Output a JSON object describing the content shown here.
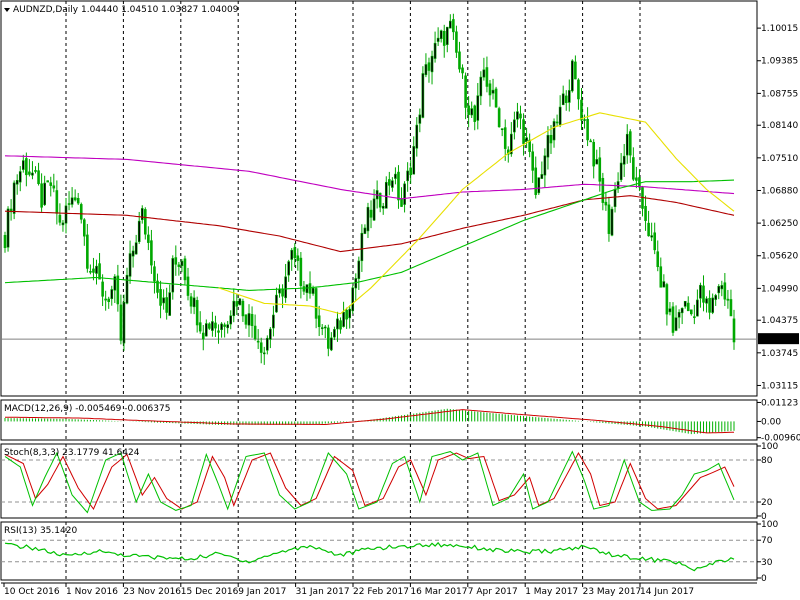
{
  "colors": {
    "candle": "#00a800",
    "ma_red": "#b00000",
    "ma_magenta": "#c000c0",
    "ma_green": "#00c000",
    "ma_yellow": "#e8e000",
    "macd_hist": "#00b000",
    "macd_signal": "#d00000",
    "stoch_main": "#00c000",
    "stoch_signal": "#d00000",
    "rsi_line": "#00c000",
    "price_box": "#000000"
  },
  "chart_data": [
    {
      "type": "candlestick",
      "title": "AUDNZD,Daily  1.04440 1.04510 1.03827 1.04009",
      "ylim": [
        1.0295,
        1.105
      ],
      "yticks": [
        "1.10015",
        "1.09385",
        "1.08755",
        "1.08140",
        "1.07510",
        "1.06880",
        "1.06250",
        "1.05620",
        "1.04990",
        "1.04375",
        "1.03745",
        "1.03115"
      ],
      "ytick_values": [
        1.10015,
        1.09385,
        1.08755,
        1.0814,
        1.0751,
        1.0688,
        1.0625,
        1.0562,
        1.0499,
        1.04375,
        1.03745,
        1.03115
      ],
      "last_price": "1.04009",
      "last_value": 1.04009,
      "xticks": [
        "10 Oct 2016",
        "1 Nov 2016",
        "23 Nov 2016",
        "15 Dec 2016",
        "9 Jan 2017",
        "31 Jan 2017",
        "22 Feb 2017",
        "16 Mar 2017",
        "7 Apr 2017",
        "1 May 2017",
        "23 May 2017",
        "14 Jun 2017"
      ],
      "close_path": [
        [
          0,
          1.06
        ],
        [
          3,
          1.07
        ],
        [
          6,
          1.074
        ],
        [
          9,
          1.072
        ],
        [
          12,
          1.067
        ],
        [
          15,
          1.07
        ],
        [
          18,
          1.062
        ],
        [
          21,
          1.066
        ],
        [
          24,
          1.068
        ],
        [
          27,
          1.056
        ],
        [
          30,
          1.052
        ],
        [
          33,
          1.048
        ],
        [
          36,
          1.05
        ],
        [
          38,
          1.04
        ],
        [
          40,
          1.052
        ],
        [
          43,
          1.06
        ],
        [
          45,
          1.064
        ],
        [
          48,
          1.056
        ],
        [
          50,
          1.05
        ],
        [
          53,
          1.045
        ],
        [
          55,
          1.054
        ],
        [
          58,
          1.056
        ],
        [
          60,
          1.05
        ],
        [
          63,
          1.045
        ],
        [
          65,
          1.042
        ],
        [
          68,
          1.044
        ],
        [
          70,
          1.042
        ],
        [
          73,
          1.045
        ],
        [
          76,
          1.048
        ],
        [
          79,
          1.045
        ],
        [
          82,
          1.042
        ],
        [
          85,
          1.038
        ],
        [
          88,
          1.045
        ],
        [
          91,
          1.05
        ],
        [
          94,
          1.056
        ],
        [
          97,
          1.052
        ],
        [
          100,
          1.05
        ],
        [
          103,
          1.044
        ],
        [
          106,
          1.039
        ],
        [
          109,
          1.042
        ],
        [
          112,
          1.046
        ],
        [
          115,
          1.052
        ],
        [
          118,
          1.062
        ],
        [
          121,
          1.066
        ],
        [
          124,
          1.068
        ],
        [
          127,
          1.072
        ],
        [
          130,
          1.066
        ],
        [
          133,
          1.074
        ],
        [
          135,
          1.08
        ],
        [
          137,
          1.09
        ],
        [
          140,
          1.095
        ],
        [
          143,
          1.098
        ],
        [
          146,
          1.1
        ],
        [
          148,
          1.095
        ],
        [
          151,
          1.087
        ],
        [
          154,
          1.082
        ],
        [
          157,
          1.092
        ],
        [
          159,
          1.088
        ],
        [
          162,
          1.083
        ],
        [
          165,
          1.076
        ],
        [
          168,
          1.084
        ],
        [
          171,
          1.078
        ],
        [
          174,
          1.068
        ],
        [
          177,
          1.076
        ],
        [
          180,
          1.08
        ],
        [
          183,
          1.086
        ],
        [
          186,
          1.092
        ],
        [
          189,
          1.084
        ],
        [
          192,
          1.078
        ],
        [
          195,
          1.07
        ],
        [
          198,
          1.062
        ],
        [
          201,
          1.072
        ],
        [
          204,
          1.078
        ],
        [
          207,
          1.069
        ],
        [
          210,
          1.064
        ],
        [
          213,
          1.056
        ],
        [
          216,
          1.049
        ],
        [
          219,
          1.042
        ],
        [
          222,
          1.047
        ],
        [
          225,
          1.045
        ],
        [
          228,
          1.049
        ],
        [
          231,
          1.045
        ],
        [
          234,
          1.051
        ],
        [
          237,
          1.048
        ],
        [
          239,
          1.04
        ]
      ],
      "series": [
        {
          "name": "",
          "color_key": "ma_magenta",
          "points": [
            [
              0,
              1.0755
            ],
            [
              40,
              1.0748
            ],
            [
              80,
              1.0725
            ],
            [
              110,
              1.069
            ],
            [
              130,
              1.0672
            ],
            [
              150,
              1.0685
            ],
            [
              170,
              1.069
            ],
            [
              190,
              1.07
            ],
            [
              210,
              1.0695
            ],
            [
              239,
              1.0682
            ]
          ]
        },
        {
          "name": "",
          "color_key": "ma_red",
          "points": [
            [
              0,
              1.0648
            ],
            [
              40,
              1.064
            ],
            [
              70,
              1.062
            ],
            [
              90,
              1.06
            ],
            [
              110,
              1.057
            ],
            [
              130,
              1.0585
            ],
            [
              150,
              1.0615
            ],
            [
              170,
              1.064
            ],
            [
              190,
              1.067
            ],
            [
              205,
              1.0678
            ],
            [
              220,
              1.0665
            ],
            [
              239,
              1.064
            ]
          ]
        },
        {
          "name": "",
          "color_key": "ma_green",
          "points": [
            [
              0,
              1.051
            ],
            [
              30,
              1.052
            ],
            [
              60,
              1.0505
            ],
            [
              80,
              1.0495
            ],
            [
              100,
              1.05
            ],
            [
              115,
              1.051
            ],
            [
              130,
              1.053
            ],
            [
              150,
              1.058
            ],
            [
              170,
              1.063
            ],
            [
              190,
              1.067
            ],
            [
              200,
              1.069
            ],
            [
              210,
              1.0705
            ],
            [
              225,
              1.0705
            ],
            [
              239,
              1.0708
            ]
          ]
        },
        {
          "name": "",
          "color_key": "ma_yellow",
          "points": [
            [
              70,
              1.05
            ],
            [
              85,
              1.047
            ],
            [
              100,
              1.0465
            ],
            [
              110,
              1.045
            ],
            [
              120,
              1.05
            ],
            [
              135,
              1.059
            ],
            [
              150,
              1.069
            ],
            [
              165,
              1.076
            ],
            [
              180,
              1.081
            ],
            [
              195,
              1.0838
            ],
            [
              210,
              1.082
            ],
            [
              220,
              1.075
            ],
            [
              230,
              1.069
            ],
            [
              239,
              1.0648
            ]
          ]
        }
      ]
    },
    {
      "type": "bar",
      "title": "MACD(12,26,9) -0.005469 -0.006375",
      "ylim": [
        -0.0098,
        0.0115
      ],
      "yticks": [
        "0.01123",
        "0.00",
        "-0.00960"
      ],
      "ytick_values": [
        0.01123,
        0,
        -0.0096
      ],
      "histogram_points": [
        [
          0,
          0.002
        ],
        [
          20,
          0.0015
        ],
        [
          40,
          0.0
        ],
        [
          70,
          -0.002
        ],
        [
          100,
          -0.002
        ],
        [
          120,
          0.001
        ],
        [
          145,
          0.0075
        ],
        [
          165,
          0.004
        ],
        [
          190,
          0.0
        ],
        [
          210,
          -0.003
        ],
        [
          225,
          -0.0075
        ],
        [
          239,
          -0.0055
        ]
      ],
      "signal_points": [
        [
          0,
          0.0025
        ],
        [
          25,
          0.002
        ],
        [
          45,
          0.0005
        ],
        [
          75,
          -0.0015
        ],
        [
          105,
          -0.0018
        ],
        [
          125,
          0.0015
        ],
        [
          150,
          0.007
        ],
        [
          170,
          0.004
        ],
        [
          195,
          0.0005
        ],
        [
          215,
          -0.003
        ],
        [
          230,
          -0.0068
        ],
        [
          239,
          -0.0064
        ]
      ]
    },
    {
      "type": "line",
      "title": "Stoch(8,3,3) 23.1779 41.6424",
      "ylim": [
        0,
        100
      ],
      "yticks": [
        "100",
        "80",
        "20",
        "0"
      ],
      "ytick_values": [
        100,
        80,
        20,
        0
      ],
      "main_points": [
        [
          0,
          85
        ],
        [
          5,
          70
        ],
        [
          9,
          15
        ],
        [
          13,
          55
        ],
        [
          17,
          90
        ],
        [
          22,
          30
        ],
        [
          27,
          5
        ],
        [
          33,
          80
        ],
        [
          38,
          90
        ],
        [
          43,
          20
        ],
        [
          47,
          60
        ],
        [
          51,
          20
        ],
        [
          56,
          8
        ],
        [
          61,
          15
        ],
        [
          66,
          88
        ],
        [
          70,
          45
        ],
        [
          73,
          10
        ],
        [
          79,
          85
        ],
        [
          85,
          90
        ],
        [
          90,
          30
        ],
        [
          95,
          10
        ],
        [
          100,
          20
        ],
        [
          106,
          90
        ],
        [
          112,
          60
        ],
        [
          116,
          10
        ],
        [
          122,
          20
        ],
        [
          127,
          75
        ],
        [
          131,
          85
        ],
        [
          136,
          20
        ],
        [
          140,
          85
        ],
        [
          146,
          92
        ],
        [
          150,
          80
        ],
        [
          155,
          90
        ],
        [
          160,
          15
        ],
        [
          165,
          25
        ],
        [
          170,
          60
        ],
        [
          173,
          10
        ],
        [
          178,
          20
        ],
        [
          186,
          92
        ],
        [
          190,
          50
        ],
        [
          193,
          10
        ],
        [
          198,
          15
        ],
        [
          203,
          80
        ],
        [
          208,
          20
        ],
        [
          212,
          8
        ],
        [
          218,
          10
        ],
        [
          222,
          30
        ],
        [
          226,
          60
        ],
        [
          230,
          65
        ],
        [
          234,
          75
        ],
        [
          239,
          23
        ]
      ],
      "signal_points": [
        [
          0,
          88
        ],
        [
          6,
          75
        ],
        [
          10,
          25
        ],
        [
          14,
          45
        ],
        [
          19,
          85
        ],
        [
          24,
          40
        ],
        [
          29,
          10
        ],
        [
          35,
          70
        ],
        [
          40,
          88
        ],
        [
          45,
          30
        ],
        [
          49,
          55
        ],
        [
          53,
          25
        ],
        [
          58,
          10
        ],
        [
          63,
          20
        ],
        [
          68,
          85
        ],
        [
          72,
          55
        ],
        [
          75,
          15
        ],
        [
          81,
          80
        ],
        [
          87,
          90
        ],
        [
          92,
          40
        ],
        [
          97,
          15
        ],
        [
          102,
          25
        ],
        [
          108,
          85
        ],
        [
          114,
          65
        ],
        [
          118,
          15
        ],
        [
          124,
          25
        ],
        [
          129,
          70
        ],
        [
          133,
          80
        ],
        [
          138,
          30
        ],
        [
          142,
          80
        ],
        [
          148,
          90
        ],
        [
          152,
          82
        ],
        [
          157,
          85
        ],
        [
          162,
          22
        ],
        [
          167,
          30
        ],
        [
          172,
          55
        ],
        [
          175,
          15
        ],
        [
          180,
          25
        ],
        [
          188,
          90
        ],
        [
          192,
          60
        ],
        [
          195,
          15
        ],
        [
          200,
          20
        ],
        [
          205,
          75
        ],
        [
          210,
          25
        ],
        [
          214,
          10
        ],
        [
          220,
          15
        ],
        [
          224,
          35
        ],
        [
          228,
          55
        ],
        [
          232,
          62
        ],
        [
          236,
          70
        ],
        [
          239,
          42
        ]
      ]
    },
    {
      "type": "line",
      "title": "RSI(13) 35.1420",
      "ylim": [
        0,
        100
      ],
      "yticks": [
        "100",
        "70",
        "30",
        "0"
      ],
      "ytick_values": [
        100,
        70,
        30,
        0
      ],
      "points": [
        [
          0,
          62
        ],
        [
          10,
          55
        ],
        [
          20,
          40
        ],
        [
          30,
          50
        ],
        [
          40,
          42
        ],
        [
          50,
          38
        ],
        [
          60,
          35
        ],
        [
          70,
          45
        ],
        [
          80,
          30
        ],
        [
          90,
          48
        ],
        [
          100,
          60
        ],
        [
          110,
          42
        ],
        [
          120,
          55
        ],
        [
          130,
          58
        ],
        [
          140,
          62
        ],
        [
          150,
          60
        ],
        [
          160,
          52
        ],
        [
          170,
          48
        ],
        [
          180,
          50
        ],
        [
          190,
          58
        ],
        [
          200,
          42
        ],
        [
          210,
          35
        ],
        [
          220,
          30
        ],
        [
          225,
          15
        ],
        [
          230,
          22
        ],
        [
          234,
          30
        ],
        [
          239,
          35
        ]
      ]
    }
  ]
}
